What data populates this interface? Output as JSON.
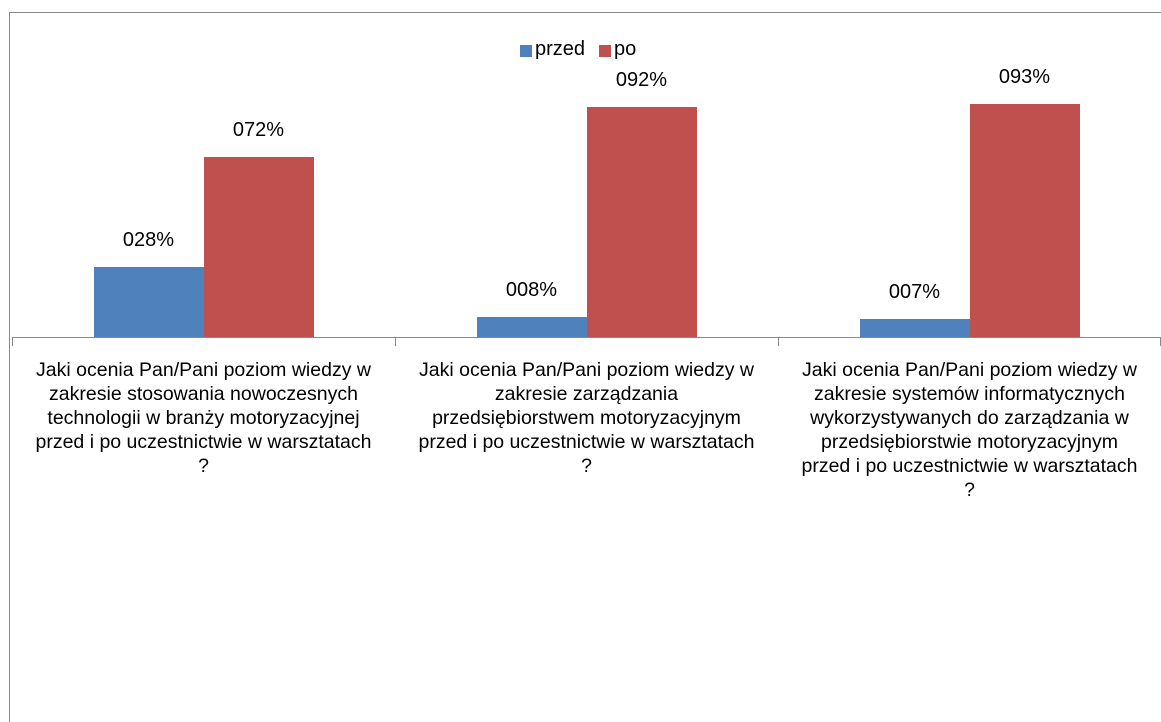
{
  "chart_data": {
    "type": "bar",
    "categories": [
      "Jaki ocenia Pan/Pani poziom wiedzy w zakresie stosowania nowoczesnych technologii w branży motoryzacyjnej przed i po uczestnictwie w warsztatach  ?",
      "Jaki ocenia Pan/Pani poziom wiedzy w zakresie zarządzania przedsiębiorstwem motoryzacyjnym przed i po uczestnictwie w warsztatach  ?",
      "Jaki ocenia Pan/Pani poziom wiedzy w zakresie systemów informatycznych wykorzystywanych do zarządzania w przedsiębiorstwie motoryzacyjnym przed i po uczestnictwie w warsztatach  ?"
    ],
    "series": [
      {
        "name": "przed",
        "color": "#4f81bd",
        "values": [
          28,
          8,
          7
        ],
        "value_labels": [
          "028%",
          "008%",
          "007%"
        ]
      },
      {
        "name": "po",
        "color": "#c0504d",
        "values": [
          72,
          92,
          93
        ],
        "value_labels": [
          "072%",
          "092%",
          "093%"
        ]
      }
    ],
    "legend": "top"
  }
}
